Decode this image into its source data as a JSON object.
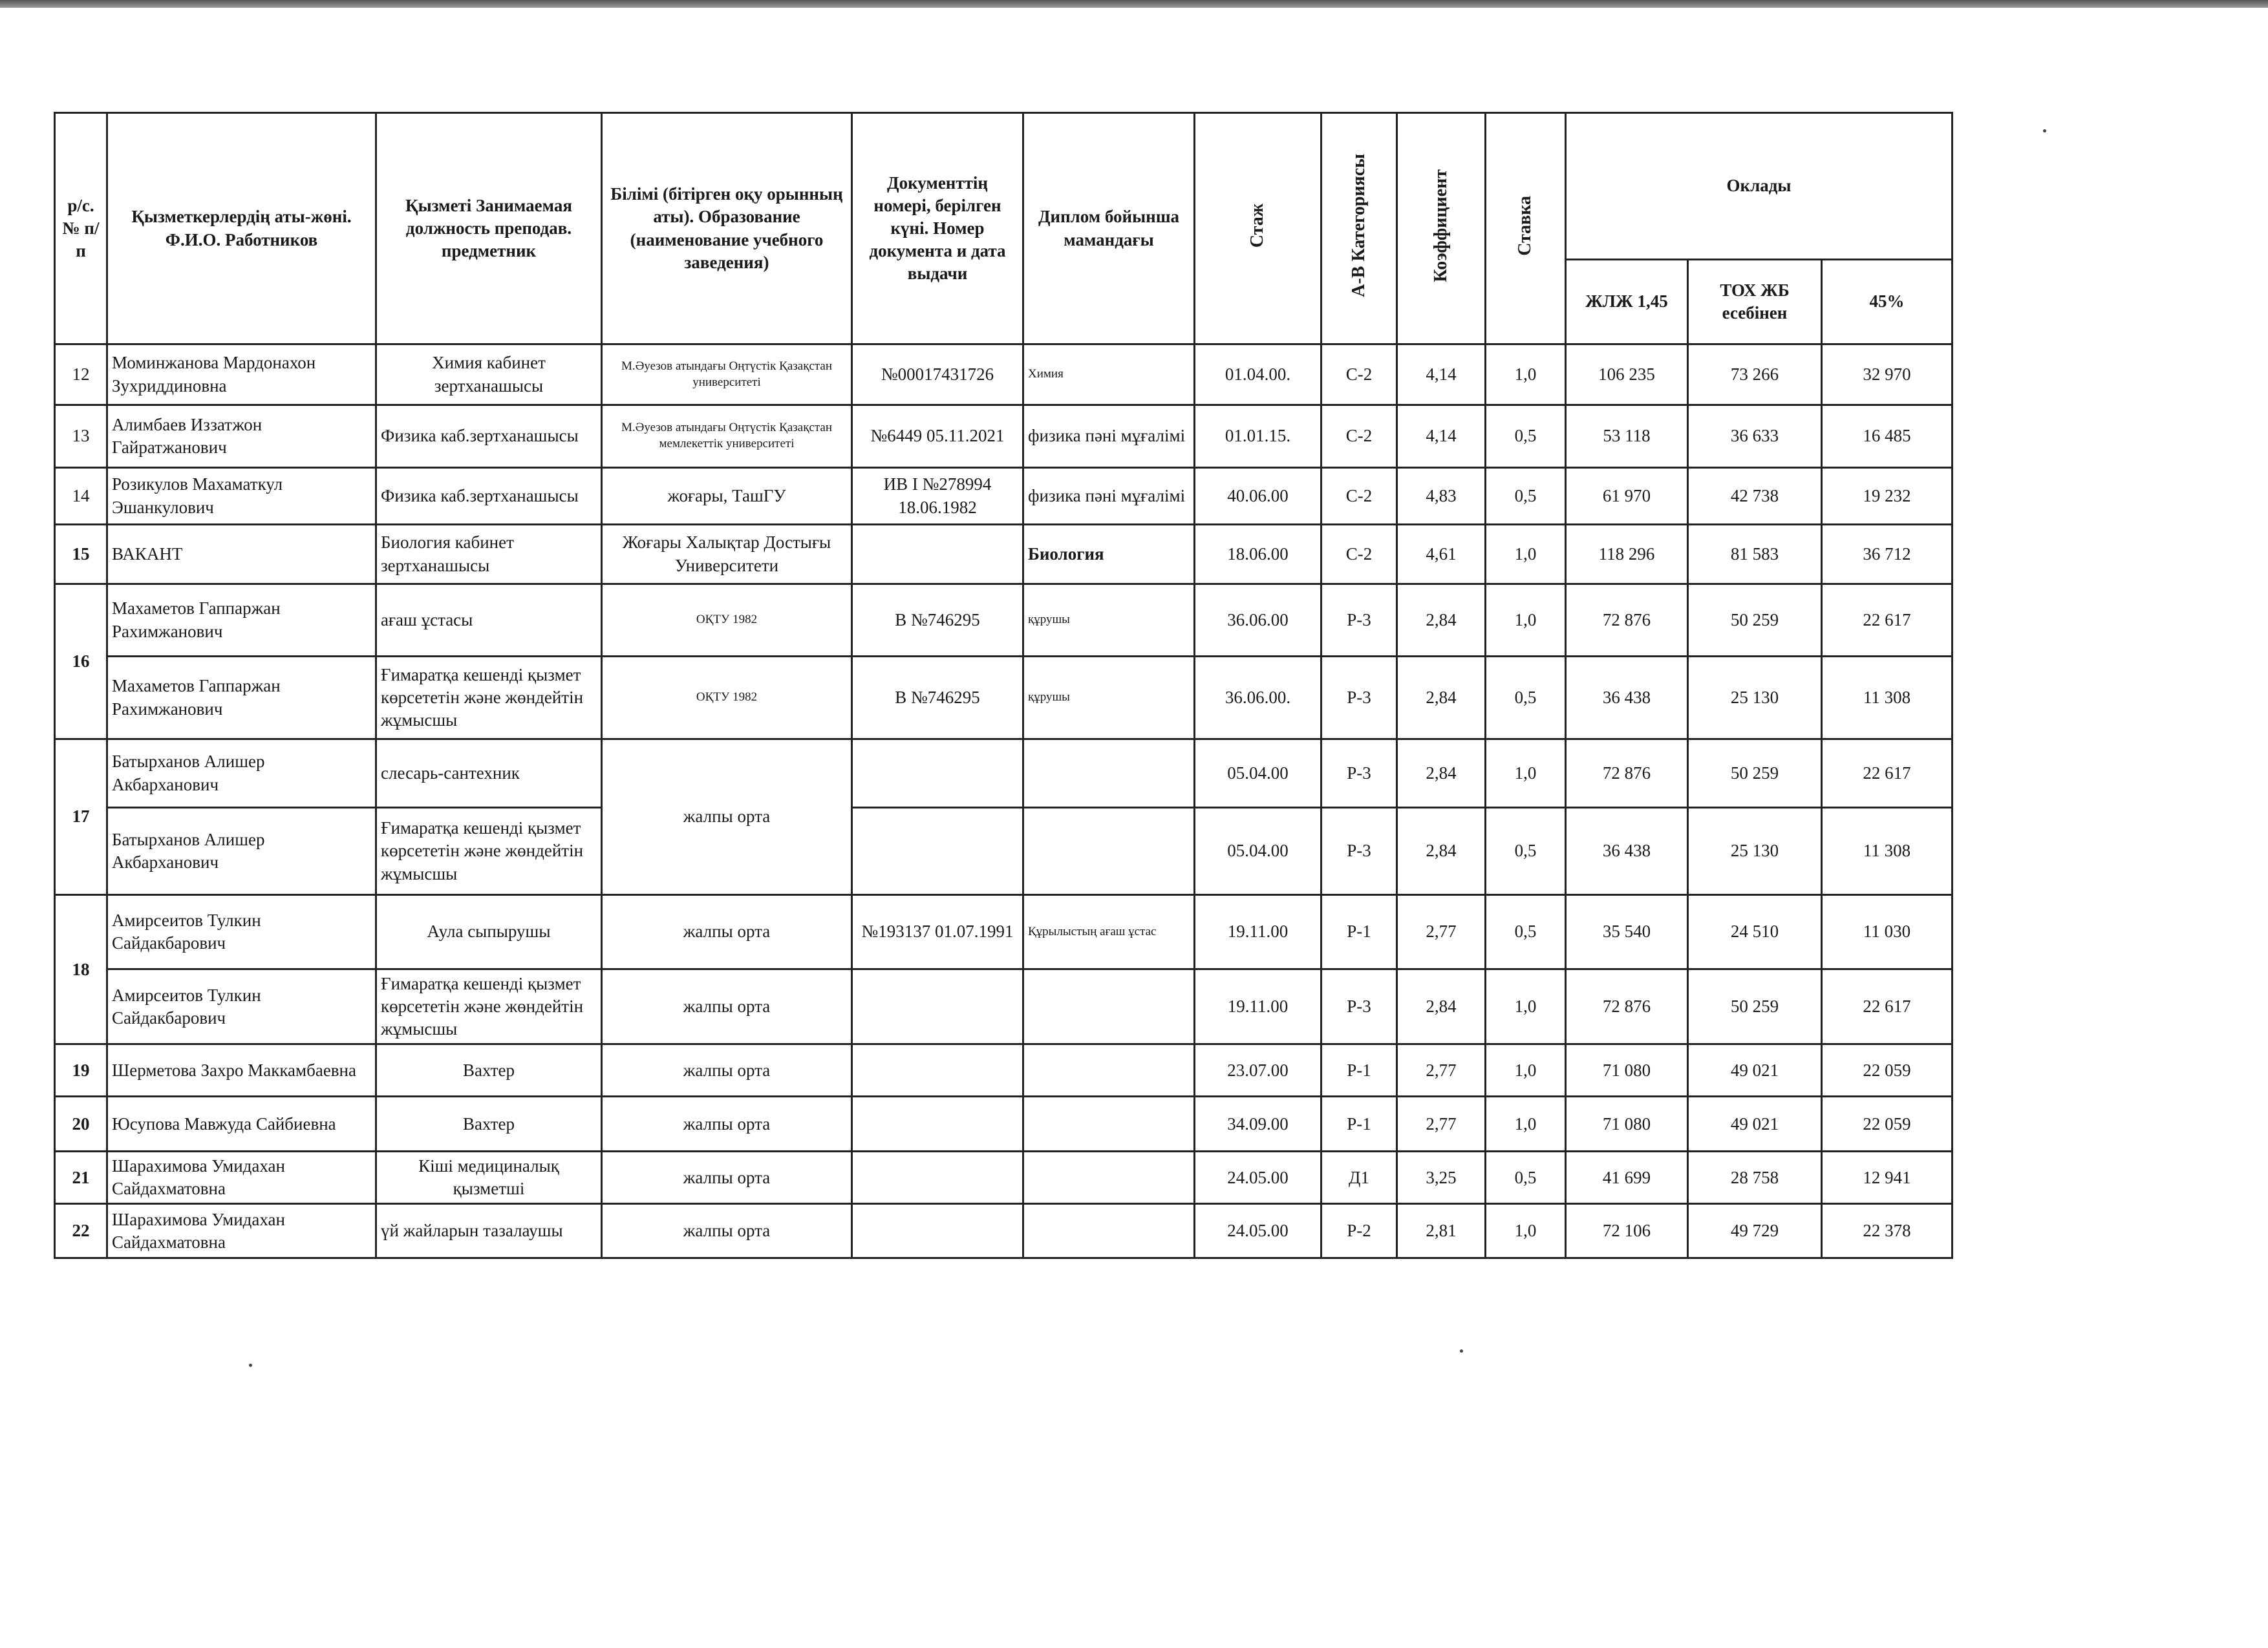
{
  "header": {
    "no": "р/с.№ п/п",
    "name": "Қызметкерлердің аты-жөні. Ф.И.О. Работников",
    "position": "Қызметі Занимаемая должность преподав. предметник",
    "education": "Білімі (бітірген оқу орынның аты). Образование (наименование учебного заведения)",
    "document": "Документтің номері, берілген күні.  Номер документа  и дата выдачи",
    "diploma": "Диплом бойынша мамандағы",
    "experience": "Стаж",
    "category": "А-В Категориясы",
    "coefficient": "Коэффициент",
    "rate": "Ставка",
    "salaries": "Оклады",
    "salary_1": "ЖЛЖ 1,45",
    "salary_2": "ТОХ  ЖБ есебінен",
    "salary_3": "45%"
  },
  "rows": [
    {
      "cells": [
        "12",
        "Моминжанова Мардонахон Зухриддиновна",
        "Химия кабинет зертханашысы",
        "М.Әуезов атындағы Оңтүстік Қазақстан университеті",
        "№00017431726",
        "Химия",
        "01.04.00.",
        "С-2",
        "4,14",
        "1,0",
        "106 235",
        "73 266",
        "32 970"
      ]
    },
    {
      "cells": [
        "13",
        "Алимбаев Иззатжон Гайратжанович",
        "Физика  каб.зертханашысы",
        "М.Әуезов атындағы Оңтүстік Қазақстан мемлекеттік университеті",
        "№6449 05.11.2021",
        "физика пәні мұғалімі",
        "01.01.15.",
        "С-2",
        "4,14",
        "0,5",
        "53 118",
        "36 633",
        "16 485"
      ]
    },
    {
      "cells": [
        "14",
        "Розикулов Махаматкул Эшанкулович",
        "Физика  каб.зертханашысы",
        "жоғары, ТашГУ",
        "ИВ I №278994 18.06.1982",
        "физика пәні мұғалімі",
        "40.06.00",
        "С-2",
        "4,83",
        "0,5",
        "61 970",
        "42 738",
        "19 232"
      ]
    },
    {
      "cells": [
        "15",
        "ВАКАНТ",
        "Биология кабинет зертханашысы",
        "Жоғары Халықтар Достығы Университети",
        "",
        "Биология",
        "18.06.00",
        "С-2",
        "4,61",
        "1,0",
        "118 296",
        "81 583",
        "36 712"
      ]
    },
    {
      "cells": [
        "16",
        "Махаметов    Гаппаржан Рахимжанович",
        "ағаш ұстасы",
        "ОҚТУ  1982",
        "В №746295",
        "құрушы",
        "36.06.00",
        "Р-3",
        "2,84",
        "1,0",
        "72 876",
        "50 259",
        "22 617"
      ]
    },
    {
      "cells": [
        null,
        "Махаметов    Гаппаржан Рахимжанович",
        "Ғимаратқа кешенді қызмет көрсететін және жөндейтін жұмысшы",
        "ОҚТУ  1982",
        "В №746295",
        "құрушы",
        "36.06.00.",
        "Р-3",
        "2,84",
        "0,5",
        "36 438",
        "25 130",
        "11 308"
      ]
    },
    {
      "cells": [
        "17",
        "Батырханов Алишер Акбарханович",
        "слесарь-сантехник",
        "жалпы орта",
        "",
        "",
        "05.04.00",
        "Р-3",
        "2,84",
        "1,0",
        "72 876",
        "50 259",
        "22 617"
      ]
    },
    {
      "cells": [
        null,
        "Батырханов Алишер Акбарханович",
        "Ғимаратқа кешенді қызмет көрсететін және жөндейтін жұмысшы",
        null,
        "",
        "",
        "05.04.00",
        "Р-3",
        "2,84",
        "0,5",
        "36 438",
        "25 130",
        "11 308"
      ]
    },
    {
      "cells": [
        "18",
        "Амирсеитов Тулкин Сайдакбарович",
        "Аула  сыпырушы",
        "жалпы орта",
        "№193137 01.07.1991",
        "Құрылыстың ағаш ұстас",
        "19.11.00",
        "Р-1",
        "2,77",
        "0,5",
        "35 540",
        "24 510",
        "11 030"
      ]
    },
    {
      "cells": [
        null,
        "Амирсеитов Тулкин Сайдакбарович",
        "Ғимаратқа кешенді қызмет көрсететін және жөндейтін жұмысшы",
        "жалпы орта",
        "",
        "",
        "19.11.00",
        "Р-3",
        "2,84",
        "1,0",
        "72 876",
        "50 259",
        "22 617"
      ]
    },
    {
      "cells": [
        "19",
        "Шерметова Захро Маккамбаевна",
        "Вахтер",
        "жалпы орта",
        "",
        "",
        "23.07.00",
        "Р-1",
        "2,77",
        "1,0",
        "71 080",
        "49 021",
        "22 059"
      ]
    },
    {
      "cells": [
        "20",
        "Юсупова Мавжуда Сайбиевна",
        "Вахтер",
        "жалпы орта",
        "",
        "",
        "34.09.00",
        "Р-1",
        "2,77",
        "1,0",
        "71 080",
        "49 021",
        "22 059"
      ]
    },
    {
      "cells": [
        "21",
        "Шарахимова Умидахан Сайдахматовна",
        "Кіші медициналық қызметші",
        "жалпы орта",
        "",
        "",
        "24.05.00",
        "Д1",
        "3,25",
        "0,5",
        "41 699",
        "28 758",
        "12 941"
      ]
    },
    {
      "cells": [
        "22",
        "Шарахимова Умидахан Сайдахматовна",
        "үй жайларын тазалаушы",
        "жалпы орта",
        "",
        "",
        "24.05.00",
        "Р-2",
        "2,81",
        "1,0",
        "72 106",
        "49 729",
        "22 378"
      ]
    }
  ]
}
